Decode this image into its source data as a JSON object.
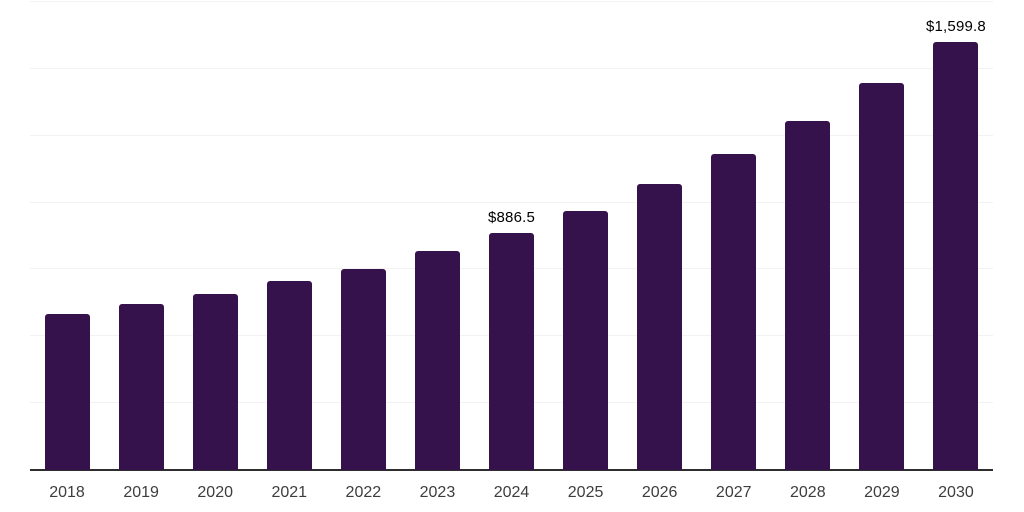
{
  "chart_data": {
    "type": "bar",
    "title": "",
    "xlabel": "",
    "ylabel": "",
    "categories": [
      "2018",
      "2019",
      "2020",
      "2021",
      "2022",
      "2023",
      "2024",
      "2025",
      "2026",
      "2027",
      "2028",
      "2029",
      "2030"
    ],
    "values": [
      583,
      620,
      657,
      706,
      753,
      818,
      886.5,
      970,
      1070,
      1180,
      1306,
      1449,
      1599.8
    ],
    "data_labels": [
      {
        "category": "2024",
        "text": "$886.5"
      },
      {
        "category": "2030",
        "text": "$1,599.8"
      }
    ],
    "ylim": [
      0,
      1750
    ],
    "gridline_step": 250,
    "grid": "horizontal",
    "legend": "none",
    "colors": {
      "bar": "#36124d",
      "gridline": "#f2f2f2",
      "axis_line": "#2e2e2e",
      "tick_label": "#3d3d3d",
      "data_label": "#000000",
      "background": "#ffffff"
    }
  }
}
